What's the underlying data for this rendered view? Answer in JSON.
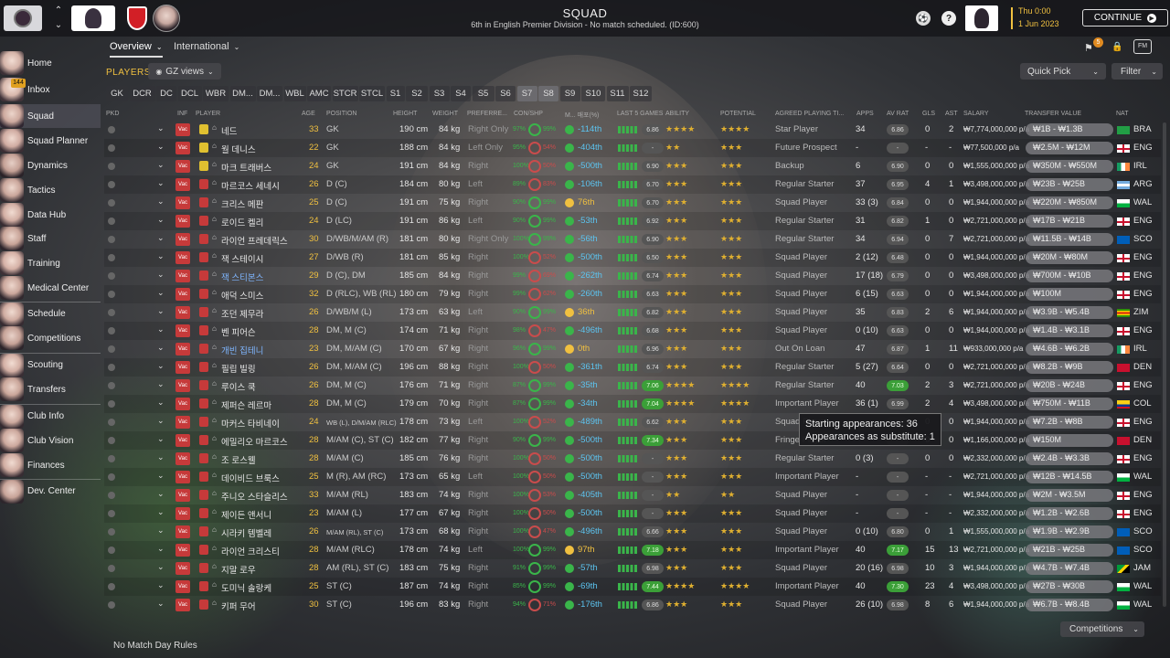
{
  "header": {
    "title": "SQUAD",
    "subtitle": "6th in English Premier Division - No match scheduled. (ID:600)",
    "date_day": "Thu 0:00",
    "date": "1 Jun 2023",
    "continue_label": "CONTINUE",
    "notification_count": "5"
  },
  "sidebar": {
    "inbox_badge": "144",
    "items": [
      {
        "label": "Home"
      },
      {
        "label": "Inbox"
      },
      {
        "label": "Squad"
      },
      {
        "label": "Squad Planner"
      },
      {
        "label": "Dynamics"
      },
      {
        "label": "Tactics"
      },
      {
        "label": "Data Hub"
      },
      {
        "label": "Staff"
      },
      {
        "label": "Training"
      },
      {
        "label": "Medical Center"
      },
      {
        "label": "Schedule"
      },
      {
        "label": "Competitions"
      },
      {
        "label": "Scouting"
      },
      {
        "label": "Transfers"
      },
      {
        "label": "Club Info"
      },
      {
        "label": "Club Vision"
      },
      {
        "label": "Finances"
      },
      {
        "label": "Dev. Center"
      }
    ]
  },
  "tabs": {
    "overview": "Overview",
    "international": "International"
  },
  "toolbar": {
    "players_label": "PLAYERS",
    "views_label": "GZ views",
    "quick_pick": "Quick Pick",
    "filter": "Filter"
  },
  "positions": [
    "GK",
    "DCR",
    "DC",
    "DCL",
    "WBR",
    "DM...",
    "DM...",
    "WBL",
    "AMC",
    "STCR",
    "STCL",
    "S1",
    "S2",
    "S3",
    "S4",
    "S5",
    "S6",
    "S7",
    "S8",
    "S9",
    "S10",
    "S11",
    "S12"
  ],
  "columns": {
    "pkd": "PKD",
    "inf": "INF",
    "player": "PLAYER",
    "age": "AGE",
    "position": "POSITION",
    "height": "HEIGHT",
    "weight": "WEIGHT",
    "foot": "PREFERRE...",
    "cond": "CON/SHP",
    "form": "M... 매포(%)",
    "last5": "LAST 5 GAMES",
    "ability": "ABILITY",
    "potential": "POTENTIAL",
    "agreed": "AGREED PLAYING TI...",
    "apps": "APPS",
    "avrat": "AV RAT",
    "gls": "GLS",
    "ast": "AST",
    "salary": "SALARY",
    "tv": "TRANSFER VALUE",
    "nat": "NAT"
  },
  "players": [
    {
      "name": "네드",
      "age": "33",
      "pos": "GK",
      "height": "190 cm",
      "weight": "84 kg",
      "foot": "Right Only",
      "cond": "97%",
      "shp": "99%",
      "form": "-114th",
      "rat": "6.86",
      "ab": "★★★★",
      "pot": "★★★★",
      "agreed": "Star Player",
      "apps": "34",
      "av": "6.86",
      "gls": "0",
      "ast": "2",
      "salary": "₩7,774,000,000 p/a",
      "tv": "₩1B - ₩1.3B",
      "nat": "BRA"
    },
    {
      "name": "월 데니스",
      "age": "22",
      "pos": "GK",
      "height": "188 cm",
      "weight": "84 kg",
      "foot": "Left Only",
      "cond": "95%",
      "shp": "54%",
      "form": "-404th",
      "rat": "-",
      "ab": "★★",
      "pot": "★★★",
      "agreed": "Future Prospect",
      "apps": "-",
      "av": "-",
      "gls": "-",
      "ast": "-",
      "salary": "₩77,500,000 p/a",
      "tv": "₩2.5M - ₩12M",
      "nat": "ENG"
    },
    {
      "name": "마크 트래버스",
      "age": "24",
      "pos": "GK",
      "height": "191 cm",
      "weight": "84 kg",
      "foot": "Right",
      "cond": "100%",
      "shp": "50%",
      "form": "-500th",
      "rat": "6.90",
      "ab": "★★★",
      "pot": "★★★",
      "agreed": "Backup",
      "apps": "6",
      "av": "6.90",
      "gls": "0",
      "ast": "0",
      "salary": "₩1,555,000,000 p/a",
      "tv": "₩350M - ₩550M",
      "nat": "IRL"
    },
    {
      "name": "마르코스 세네시",
      "age": "26",
      "pos": "D (C)",
      "height": "184 cm",
      "weight": "80 kg",
      "foot": "Left",
      "cond": "89%",
      "shp": "83%",
      "form": "-106th",
      "rat": "6.70",
      "ab": "★★★",
      "pot": "★★★",
      "agreed": "Regular Starter",
      "apps": "37",
      "av": "6.95",
      "gls": "4",
      "ast": "1",
      "salary": "₩3,498,000,000 p/a",
      "tv": "₩23B - ₩25B",
      "nat": "ARG"
    },
    {
      "name": "크리스 메판",
      "age": "25",
      "pos": "D (C)",
      "height": "191 cm",
      "weight": "75 kg",
      "foot": "Right",
      "cond": "90%",
      "shp": "99%",
      "form": "76th",
      "rat": "6.70",
      "ab": "★★★",
      "pot": "★★★",
      "agreed": "Squad Player",
      "apps": "33 (3)",
      "av": "6.84",
      "gls": "0",
      "ast": "0",
      "salary": "₩1,944,000,000 p/a",
      "tv": "₩220M - ₩850M",
      "nat": "WAL"
    },
    {
      "name": "로이드 켈리",
      "age": "24",
      "pos": "D (LC)",
      "height": "191 cm",
      "weight": "86 kg",
      "foot": "Left",
      "cond": "90%",
      "shp": "99%",
      "form": "-53th",
      "rat": "6.92",
      "ab": "★★★",
      "pot": "★★★",
      "agreed": "Regular Starter",
      "apps": "31",
      "av": "6.82",
      "gls": "1",
      "ast": "0",
      "salary": "₩2,721,000,000 p/a",
      "tv": "₩17B - ₩21B",
      "nat": "ENG"
    },
    {
      "name": "라이언 프레데릭스",
      "age": "30",
      "pos": "D/WB/M/AM (R)",
      "height": "181 cm",
      "weight": "80 kg",
      "foot": "Right Only",
      "cond": "100%",
      "shp": "99%",
      "form": "-56th",
      "rat": "6.90",
      "ab": "★★★",
      "pot": "★★★",
      "agreed": "Regular Starter",
      "apps": "34",
      "av": "6.94",
      "gls": "0",
      "ast": "7",
      "salary": "₩2,721,000,000 p/a",
      "tv": "₩11.5B - ₩14B",
      "nat": "SCO"
    },
    {
      "name": "잭 스테이시",
      "age": "27",
      "pos": "D/WB (R)",
      "height": "181 cm",
      "weight": "85 kg",
      "foot": "Right",
      "cond": "100%",
      "shp": "52%",
      "form": "-500th",
      "rat": "6.50",
      "ab": "★★★",
      "pot": "★★★",
      "agreed": "Squad Player",
      "apps": "2 (12)",
      "av": "6.48",
      "gls": "0",
      "ast": "0",
      "salary": "₩1,944,000,000 p/a",
      "tv": "₩20M - ₩80M",
      "nat": "ENG"
    },
    {
      "name": "잭 스티본스",
      "age": "29",
      "pos": "D (C), DM",
      "height": "185 cm",
      "weight": "84 kg",
      "foot": "Right",
      "cond": "99%",
      "shp": "69%",
      "form": "-262th",
      "rat": "6.74",
      "ab": "★★★",
      "pot": "★★★",
      "agreed": "Squad Player",
      "apps": "17 (18)",
      "av": "6.79",
      "gls": "0",
      "ast": "0",
      "salary": "₩3,498,000,000 p/a",
      "tv": "₩700M - ₩10B",
      "nat": "ENG"
    },
    {
      "name": "애덕 스미스",
      "age": "32",
      "pos": "D (RLC), WB (RL)",
      "height": "180 cm",
      "weight": "79 kg",
      "foot": "Right",
      "cond": "99%",
      "shp": "62%",
      "form": "-260th",
      "rat": "6.63",
      "ab": "★★★",
      "pot": "★★★",
      "agreed": "Squad Player",
      "apps": "6 (15)",
      "av": "6.63",
      "gls": "0",
      "ast": "0",
      "salary": "₩1,944,000,000 p/a",
      "tv": "₩100M",
      "nat": "ENG"
    },
    {
      "name": "조던 제무라",
      "age": "26",
      "pos": "D/WB/M (L)",
      "height": "173 cm",
      "weight": "63 kg",
      "foot": "Left",
      "cond": "90%",
      "shp": "99%",
      "form": "36th",
      "rat": "6.82",
      "ab": "★★★",
      "pot": "★★★",
      "agreed": "Squad Player",
      "apps": "35",
      "av": "6.83",
      "gls": "2",
      "ast": "6",
      "salary": "₩1,944,000,000 p/a",
      "tv": "₩3.9B - ₩5.4B",
      "nat": "ZIM"
    },
    {
      "name": "벤 피어슨",
      "age": "28",
      "pos": "DM, M (C)",
      "height": "174 cm",
      "weight": "71 kg",
      "foot": "Right",
      "cond": "98%",
      "shp": "47%",
      "form": "-496th",
      "rat": "6.68",
      "ab": "★★★",
      "pot": "★★★",
      "agreed": "Squad Player",
      "apps": "0 (10)",
      "av": "6.63",
      "gls": "0",
      "ast": "0",
      "salary": "₩1,944,000,000 p/a",
      "tv": "₩1.4B - ₩3.1B",
      "nat": "ENG"
    },
    {
      "name": "개빈 집테니",
      "age": "23",
      "pos": "DM, M/AM (C)",
      "height": "170 cm",
      "weight": "67 kg",
      "foot": "Right",
      "cond": "96%",
      "shp": "99%",
      "form": "0th",
      "rat": "6.96",
      "ab": "★★★",
      "pot": "★★★",
      "agreed": "Out On Loan",
      "apps": "47",
      "av": "6.87",
      "gls": "1",
      "ast": "11",
      "salary": "₩933,000,000 p/a",
      "tv": "₩4.6B - ₩6.2B",
      "nat": "IRL"
    },
    {
      "name": "필립 빌링",
      "age": "26",
      "pos": "DM, M/AM (C)",
      "height": "196 cm",
      "weight": "88 kg",
      "foot": "Right",
      "cond": "100%",
      "shp": "50%",
      "form": "-361th",
      "rat": "6.74",
      "ab": "★★★",
      "pot": "★★★",
      "agreed": "Regular Starter",
      "apps": "5 (27)",
      "av": "6.64",
      "gls": "0",
      "ast": "0",
      "salary": "₩2,721,000,000 p/a",
      "tv": "₩8.2B - ₩9B",
      "nat": "DEN"
    },
    {
      "name": "루이스 쿡",
      "age": "26",
      "pos": "DM, M (C)",
      "height": "176 cm",
      "weight": "71 kg",
      "foot": "Right",
      "cond": "87%",
      "shp": "99%",
      "form": "-35th",
      "rat": "7.06",
      "ab": "★★★★",
      "pot": "★★★★",
      "agreed": "Regular Starter",
      "apps": "40",
      "av": "7.03",
      "gls": "2",
      "ast": "3",
      "salary": "₩2,721,000,000 p/a",
      "tv": "₩20B - ₩24B",
      "nat": "ENG"
    },
    {
      "name": "제퍼슨 레르마",
      "age": "28",
      "pos": "DM, M (C)",
      "height": "179 cm",
      "weight": "70 kg",
      "foot": "Right",
      "cond": "87%",
      "shp": "99%",
      "form": "-34th",
      "rat": "7.04",
      "ab": "★★★★",
      "pot": "★★★★",
      "agreed": "Important Player",
      "apps": "36 (1)",
      "av": "6.99",
      "gls": "2",
      "ast": "4",
      "salary": "₩3,498,000,000 p/a",
      "tv": "₩750M - ₩11B",
      "nat": "COL"
    },
    {
      "name": "마커스 타비네이",
      "age": "24",
      "pos": "WB (L), D/M/AM (RLC)",
      "height": "178 cm",
      "weight": "73 kg",
      "foot": "Left",
      "cond": "100%",
      "shp": "52%",
      "form": "-489th",
      "rat": "6.62",
      "ab": "★★★",
      "pot": "★★★",
      "agreed": "Squad Player",
      "apps": "",
      "av": "",
      "gls": "0",
      "ast": "0",
      "salary": "₩1,944,000,000 p/a",
      "tv": "₩7.2B - ₩8B",
      "nat": "ENG"
    },
    {
      "name": "에밀리오 마르코스",
      "age": "28",
      "pos": "M/AM (C), ST (C)",
      "height": "182 cm",
      "weight": "77 kg",
      "foot": "Right",
      "cond": "90%",
      "shp": "99%",
      "form": "-500th",
      "rat": "7.34",
      "ab": "★★★",
      "pot": "★★★",
      "agreed": "Fringe Player",
      "apps": "",
      "av": "",
      "gls": "0",
      "ast": "0",
      "salary": "₩1,166,000,000 p/a",
      "tv": "₩150M",
      "nat": "DEN"
    },
    {
      "name": "조 로스웰",
      "age": "28",
      "pos": "M/AM (C)",
      "height": "185 cm",
      "weight": "76 kg",
      "foot": "Right",
      "cond": "100%",
      "shp": "50%",
      "form": "-500th",
      "rat": "-",
      "ab": "★★★",
      "pot": "★★★",
      "agreed": "Regular Starter",
      "apps": "0 (3)",
      "av": "-",
      "gls": "0",
      "ast": "0",
      "salary": "₩2,332,000,000 p/a",
      "tv": "₩2.4B - ₩3.3B",
      "nat": "ENG"
    },
    {
      "name": "데이비드 브룩스",
      "age": "25",
      "pos": "M (R), AM (RC)",
      "height": "173 cm",
      "weight": "65 kg",
      "foot": "Left",
      "cond": "100%",
      "shp": "50%",
      "form": "-500th",
      "rat": "-",
      "ab": "★★★",
      "pot": "★★★",
      "agreed": "Important Player",
      "apps": "-",
      "av": "-",
      "gls": "-",
      "ast": "-",
      "salary": "₩2,721,000,000 p/a",
      "tv": "₩12B - ₩14.5B",
      "nat": "WAL"
    },
    {
      "name": "주니오 스타슬리스",
      "age": "33",
      "pos": "M/AM (RL)",
      "height": "183 cm",
      "weight": "74 kg",
      "foot": "Right",
      "cond": "100%",
      "shp": "53%",
      "form": "-405th",
      "rat": "-",
      "ab": "★★",
      "pot": "★★",
      "agreed": "Squad Player",
      "apps": "-",
      "av": "-",
      "gls": "-",
      "ast": "-",
      "salary": "₩1,944,000,000 p/a",
      "tv": "₩2M - ₩3.5M",
      "nat": "ENG"
    },
    {
      "name": "제이든 앤서니",
      "age": "23",
      "pos": "M/AM (L)",
      "height": "177 cm",
      "weight": "67 kg",
      "foot": "Right",
      "cond": "100%",
      "shp": "50%",
      "form": "-500th",
      "rat": "-",
      "ab": "★★★",
      "pot": "★★★",
      "agreed": "Squad Player",
      "apps": "-",
      "av": "-",
      "gls": "-",
      "ast": "-",
      "salary": "₩2,332,000,000 p/a",
      "tv": "₩1.2B - ₩2.6B",
      "nat": "ENG"
    },
    {
      "name": "시라키 템벨레",
      "age": "26",
      "pos": "M/AM (RL), ST (C)",
      "height": "173 cm",
      "weight": "68 kg",
      "foot": "Right",
      "cond": "100%",
      "shp": "47%",
      "form": "-496th",
      "rat": "6.66",
      "ab": "★★★",
      "pot": "★★★",
      "agreed": "Squad Player",
      "apps": "0 (10)",
      "av": "6.80",
      "gls": "0",
      "ast": "1",
      "salary": "₩1,555,000,000 p/a",
      "tv": "₩1.9B - ₩2.9B",
      "nat": "SCO"
    },
    {
      "name": "라이언 크리스티",
      "age": "28",
      "pos": "M/AM (RLC)",
      "height": "178 cm",
      "weight": "74 kg",
      "foot": "Left",
      "cond": "100%",
      "shp": "99%",
      "form": "97th",
      "rat": "7.18",
      "ab": "★★★",
      "pot": "★★★",
      "agreed": "Important Player",
      "apps": "40",
      "av": "7.17",
      "gls": "15",
      "ast": "13",
      "salary": "₩2,721,000,000 p/a",
      "tv": "₩21B - ₩25B",
      "nat": "SCO"
    },
    {
      "name": "지말 로우",
      "age": "28",
      "pos": "AM (RL), ST (C)",
      "height": "183 cm",
      "weight": "75 kg",
      "foot": "Right",
      "cond": "91%",
      "shp": "99%",
      "form": "-57th",
      "rat": "6.98",
      "ab": "★★★",
      "pot": "★★★",
      "agreed": "Squad Player",
      "apps": "20 (16)",
      "av": "6.98",
      "gls": "10",
      "ast": "3",
      "salary": "₩1,944,000,000 p/a",
      "tv": "₩4.7B - ₩7.4B",
      "nat": "JAM"
    },
    {
      "name": "도미닉 솔랑케",
      "age": "25",
      "pos": "ST (C)",
      "height": "187 cm",
      "weight": "74 kg",
      "foot": "Right",
      "cond": "85%",
      "shp": "99%",
      "form": "-69th",
      "rat": "7.44",
      "ab": "★★★★",
      "pot": "★★★★",
      "agreed": "Important Player",
      "apps": "40",
      "av": "7.30",
      "gls": "23",
      "ast": "4",
      "salary": "₩3,498,000,000 p/a",
      "tv": "₩27B - ₩30B",
      "nat": "WAL"
    },
    {
      "name": "키퍼 무어",
      "age": "30",
      "pos": "ST (C)",
      "height": "196 cm",
      "weight": "83 kg",
      "foot": "Right",
      "cond": "94%",
      "shp": "71%",
      "form": "-176th",
      "rat": "6.86",
      "ab": "★★★",
      "pot": "★★★",
      "agreed": "Squad Player",
      "apps": "26 (10)",
      "av": "6.98",
      "gls": "8",
      "ast": "6",
      "salary": "₩1,944,000,000 p/a",
      "tv": "₩6.7B - ₩8.4B",
      "nat": "WAL"
    }
  ],
  "tooltip": {
    "line1": "Starting appearances: 36",
    "line2": "Appearances as substitute: 1"
  },
  "footer": {
    "rules": "No Match Day Rules",
    "competitions": "Competitions"
  },
  "colors": {
    "vacation": "#c63a3a",
    "good_rating": "#3b9f38",
    "accent": "#f0c040"
  }
}
